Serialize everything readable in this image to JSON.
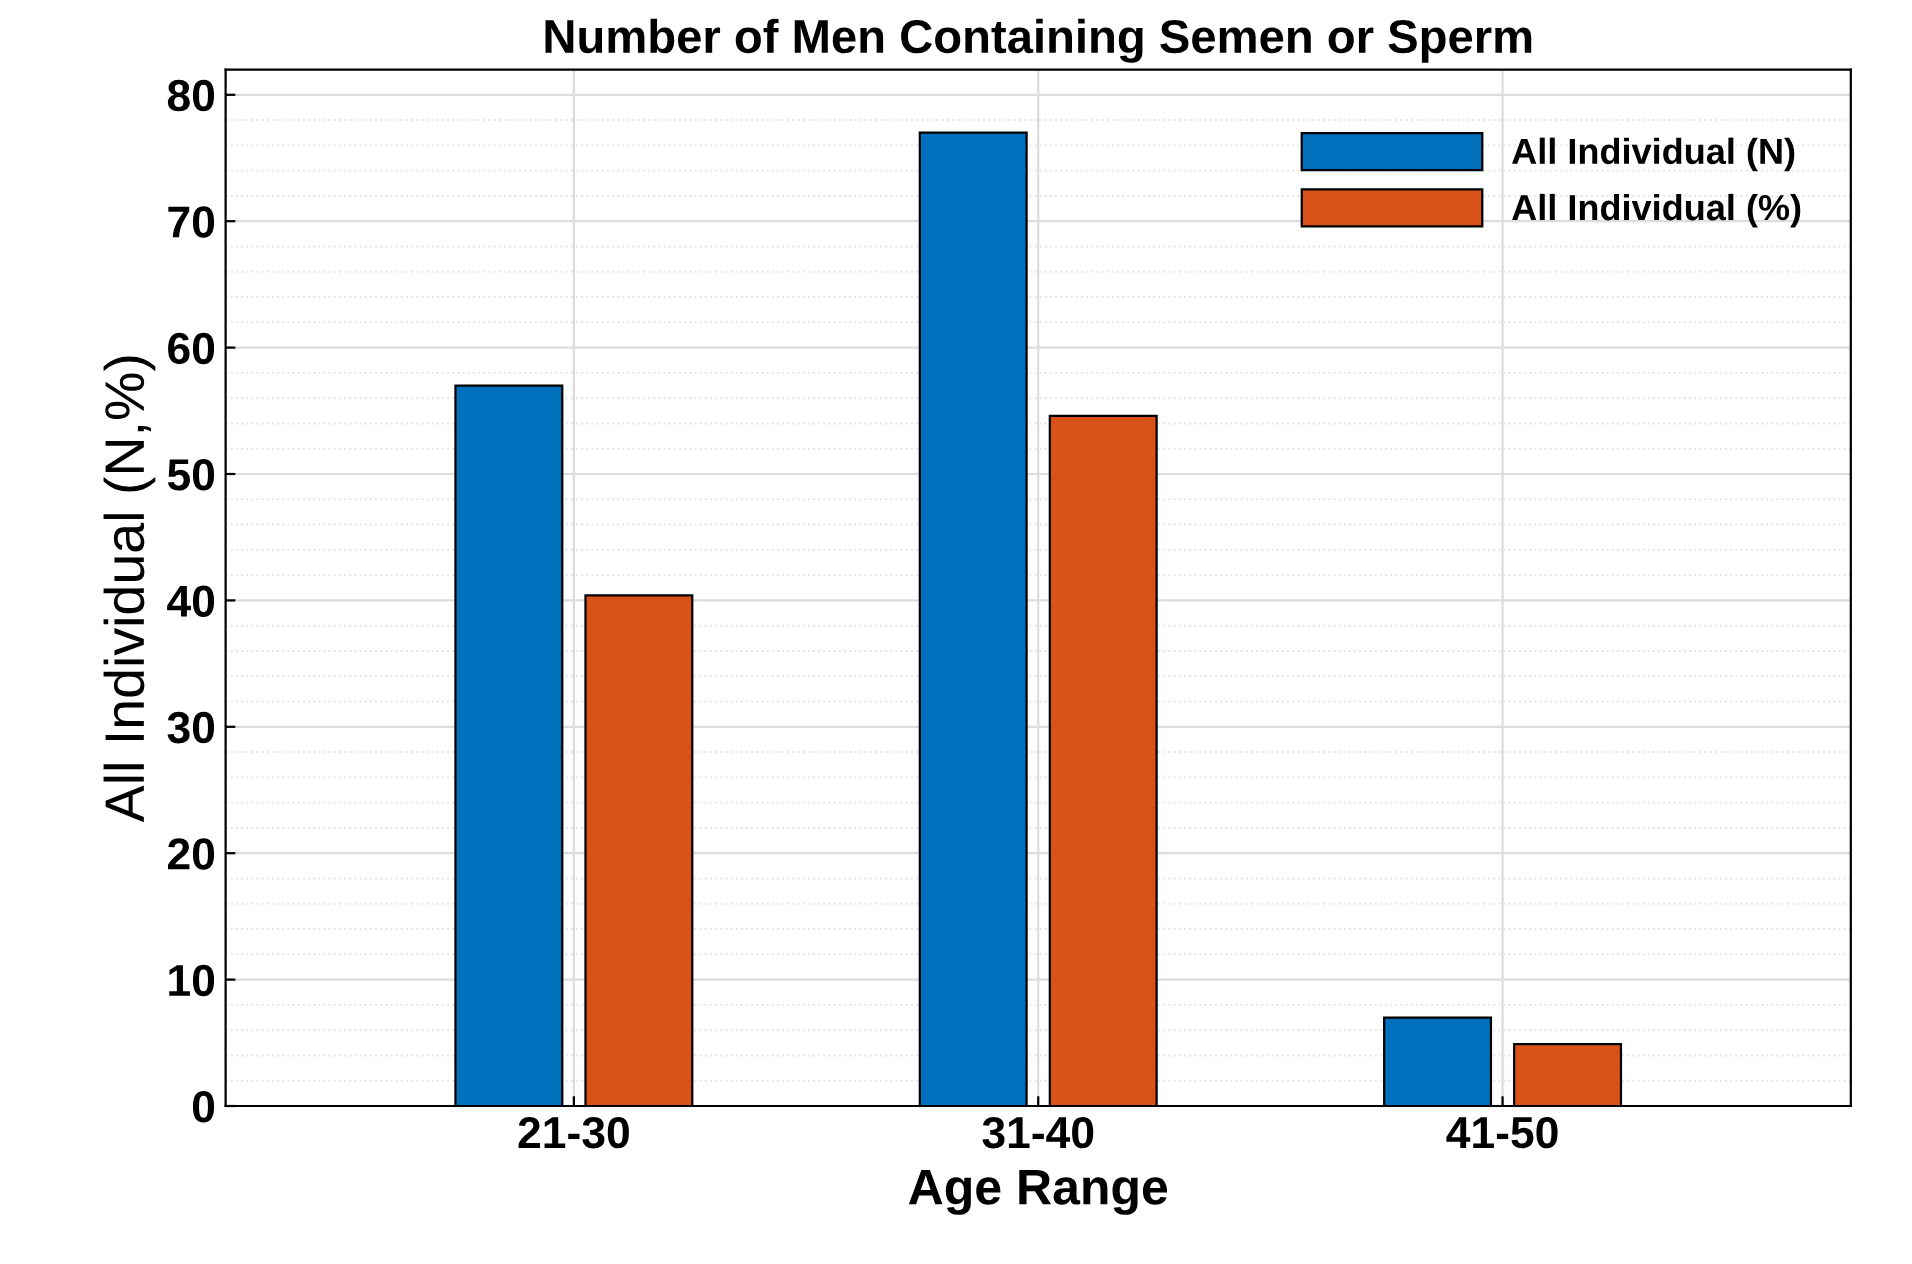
{
  "chart_data": {
    "type": "bar",
    "title": "Number of Men Containing Semen or Sperm",
    "xlabel": "Age Range",
    "ylabel": "All Individual (N,%)",
    "categories": [
      "21-30",
      "31-40",
      "41-50"
    ],
    "series": [
      {
        "name": "All Individual (N)",
        "color": "#0072bd",
        "values": [
          57,
          77,
          7
        ]
      },
      {
        "name": "All Individual (%)",
        "color": "#d95319",
        "values": [
          40.4,
          54.6,
          4.9
        ]
      }
    ],
    "ylim": [
      0,
      82
    ],
    "yticks": [
      0,
      10,
      20,
      30,
      40,
      50,
      60,
      70,
      80
    ],
    "grid": true,
    "legend": "top right"
  }
}
